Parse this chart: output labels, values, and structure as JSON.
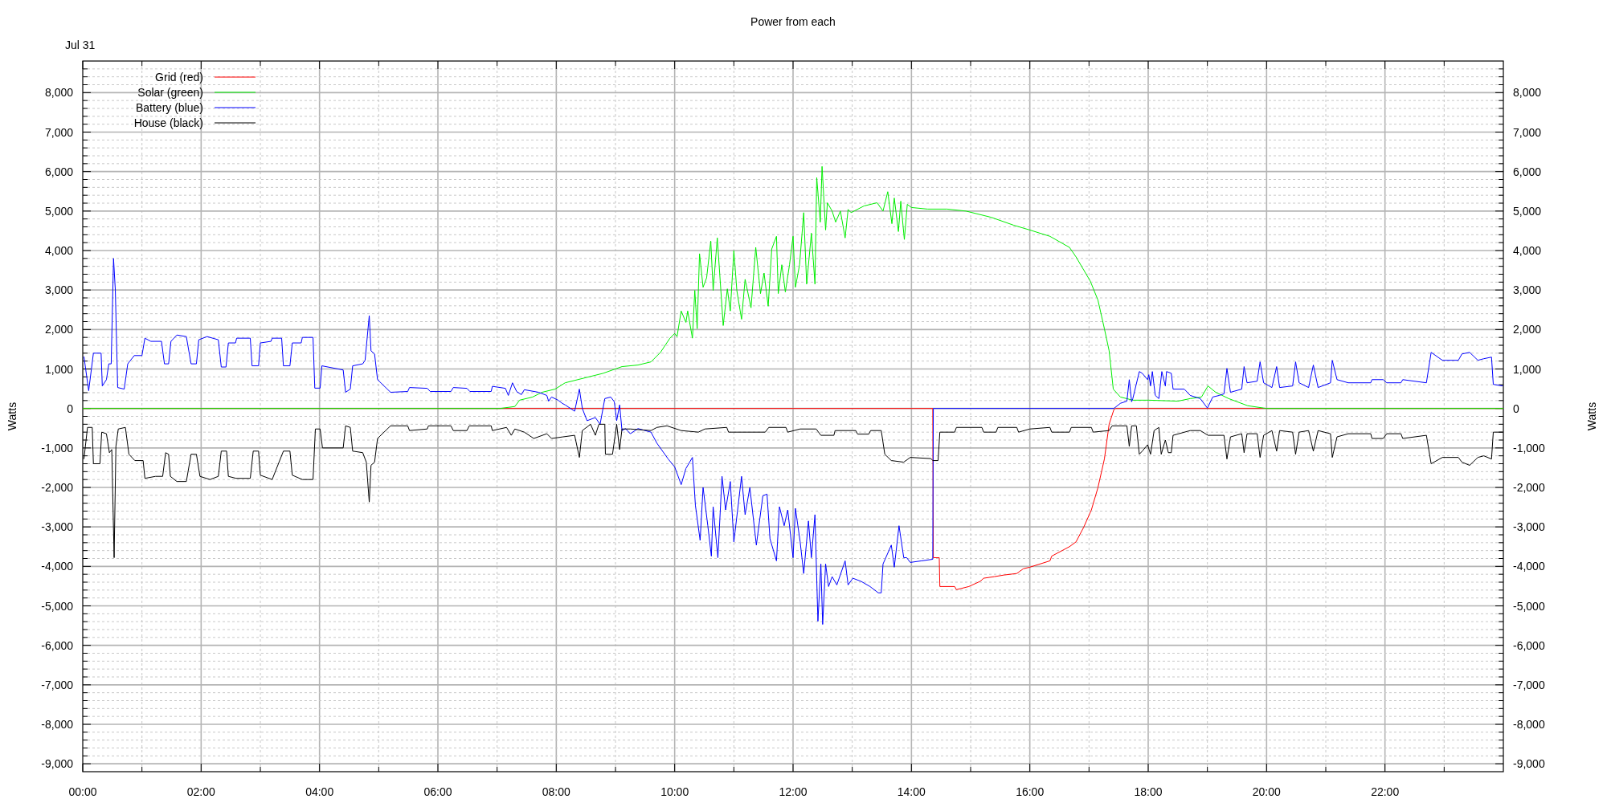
{
  "chart_data": {
    "type": "line",
    "title": "Power from each",
    "annotations": [
      "Jul 31"
    ],
    "ylabel": "Watts",
    "y2label": "Watts",
    "xlim": [
      0,
      24
    ],
    "xticks": [
      {
        "value": 0,
        "label": "00:00"
      },
      {
        "value": 1,
        "label": null
      },
      {
        "value": 2,
        "label": "02:00"
      },
      {
        "value": 3,
        "label": null
      },
      {
        "value": 4,
        "label": "04:00"
      },
      {
        "value": 5,
        "label": null
      },
      {
        "value": 6,
        "label": "06:00"
      },
      {
        "value": 7,
        "label": null
      },
      {
        "value": 8,
        "label": "08:00"
      },
      {
        "value": 9,
        "label": null
      },
      {
        "value": 10,
        "label": "10:00"
      },
      {
        "value": 11,
        "label": null
      },
      {
        "value": 12,
        "label": "12:00"
      },
      {
        "value": 13,
        "label": null
      },
      {
        "value": 14,
        "label": "14:00"
      },
      {
        "value": 15,
        "label": null
      },
      {
        "value": 16,
        "label": "16:00"
      },
      {
        "value": 17,
        "label": null
      },
      {
        "value": 18,
        "label": "18:00"
      },
      {
        "value": 19,
        "label": null
      },
      {
        "value": 20,
        "label": "20:00"
      },
      {
        "value": 21,
        "label": null
      },
      {
        "value": 22,
        "label": "22:00"
      },
      {
        "value": 23,
        "label": null
      }
    ],
    "ylim": [
      -9200,
      8800
    ],
    "yticks": [
      {
        "value": -9000,
        "label": "-9,000"
      },
      {
        "value": -8800,
        "label": null
      },
      {
        "value": -8600,
        "label": null
      },
      {
        "value": -8400,
        "label": null
      },
      {
        "value": -8200,
        "label": null
      },
      {
        "value": -8000,
        "label": "-8,000"
      },
      {
        "value": -7800,
        "label": null
      },
      {
        "value": -7600,
        "label": null
      },
      {
        "value": -7400,
        "label": null
      },
      {
        "value": -7200,
        "label": null
      },
      {
        "value": -7000,
        "label": "-7,000"
      },
      {
        "value": -6800,
        "label": null
      },
      {
        "value": -6600,
        "label": null
      },
      {
        "value": -6400,
        "label": null
      },
      {
        "value": -6200,
        "label": null
      },
      {
        "value": -6000,
        "label": "-6,000"
      },
      {
        "value": -5800,
        "label": null
      },
      {
        "value": -5600,
        "label": null
      },
      {
        "value": -5400,
        "label": null
      },
      {
        "value": -5200,
        "label": null
      },
      {
        "value": -5000,
        "label": "-5,000"
      },
      {
        "value": -4800,
        "label": null
      },
      {
        "value": -4600,
        "label": null
      },
      {
        "value": -4400,
        "label": null
      },
      {
        "value": -4200,
        "label": null
      },
      {
        "value": -4000,
        "label": "-4,000"
      },
      {
        "value": -3800,
        "label": null
      },
      {
        "value": -3600,
        "label": null
      },
      {
        "value": -3400,
        "label": null
      },
      {
        "value": -3200,
        "label": null
      },
      {
        "value": -3000,
        "label": "-3,000"
      },
      {
        "value": -2800,
        "label": null
      },
      {
        "value": -2600,
        "label": null
      },
      {
        "value": -2400,
        "label": null
      },
      {
        "value": -2200,
        "label": null
      },
      {
        "value": -2000,
        "label": "-2,000"
      },
      {
        "value": -1800,
        "label": null
      },
      {
        "value": -1600,
        "label": null
      },
      {
        "value": -1400,
        "label": null
      },
      {
        "value": -1200,
        "label": null
      },
      {
        "value": -1000,
        "label": "-1,000"
      },
      {
        "value": -800,
        "label": null
      },
      {
        "value": -600,
        "label": null
      },
      {
        "value": -400,
        "label": null
      },
      {
        "value": -200,
        "label": null
      },
      0,
      {
        "value": 200,
        "label": null
      },
      {
        "value": 400,
        "label": null
      },
      {
        "value": 600,
        "label": null
      },
      {
        "value": 800,
        "label": null
      },
      {
        "value": 1000,
        "label": "1,000"
      },
      {
        "value": 1200,
        "label": null
      },
      {
        "value": 1400,
        "label": null
      },
      {
        "value": 1600,
        "label": null
      },
      {
        "value": 1800,
        "label": null
      },
      {
        "value": 2000,
        "label": "2,000"
      },
      {
        "value": 2200,
        "label": null
      },
      {
        "value": 2400,
        "label": null
      },
      {
        "value": 2600,
        "label": null
      },
      {
        "value": 2800,
        "label": null
      },
      {
        "value": 3000,
        "label": "3,000"
      },
      {
        "value": 3200,
        "label": null
      },
      {
        "value": 3400,
        "label": null
      },
      {
        "value": 3600,
        "label": null
      },
      {
        "value": 3800,
        "label": null
      },
      {
        "value": 4000,
        "label": "4,000"
      },
      {
        "value": 4200,
        "label": null
      },
      {
        "value": 4400,
        "label": null
      },
      {
        "value": 4600,
        "label": null
      },
      {
        "value": 4800,
        "label": null
      },
      {
        "value": 5000,
        "label": "5,000"
      },
      {
        "value": 5200,
        "label": null
      },
      {
        "value": 5400,
        "label": null
      },
      {
        "value": 5600,
        "label": null
      },
      {
        "value": 5800,
        "label": null
      },
      {
        "value": 6000,
        "label": "6,000"
      },
      {
        "value": 6200,
        "label": null
      },
      {
        "value": 6400,
        "label": null
      },
      {
        "value": 6600,
        "label": null
      },
      {
        "value": 6800,
        "label": null
      },
      {
        "value": 7000,
        "label": "7,000"
      },
      {
        "value": 7200,
        "label": null
      },
      {
        "value": 7400,
        "label": null
      },
      {
        "value": 7600,
        "label": null
      },
      {
        "value": 7800,
        "label": null
      },
      {
        "value": 8000,
        "label": "8,000"
      },
      {
        "value": 8200,
        "label": null
      },
      {
        "value": 8400,
        "label": null
      },
      {
        "value": 8600,
        "label": null
      }
    ],
    "y2lim": [
      -9200,
      8800
    ],
    "y2ticks": [
      {
        "value": -9000,
        "label": "-9,000"
      },
      {
        "value": -8800,
        "label": null
      },
      {
        "value": -8600,
        "label": null
      },
      {
        "value": -8400,
        "label": null
      },
      {
        "value": -8200,
        "label": null
      },
      {
        "value": -8000,
        "label": "-8,000"
      },
      {
        "value": -7800,
        "label": null
      },
      {
        "value": -7600,
        "label": null
      },
      {
        "value": -7400,
        "label": null
      },
      {
        "value": -7200,
        "label": null
      },
      {
        "value": -7000,
        "label": "-7,000"
      },
      {
        "value": -6800,
        "label": null
      },
      {
        "value": -6600,
        "label": null
      },
      {
        "value": -6400,
        "label": null
      },
      {
        "value": -6200,
        "label": null
      },
      {
        "value": -6000,
        "label": "-6,000"
      },
      {
        "value": -5800,
        "label": null
      },
      {
        "value": -5600,
        "label": null
      },
      {
        "value": -5400,
        "label": null
      },
      {
        "value": -5200,
        "label": null
      },
      {
        "value": -5000,
        "label": "-5,000"
      },
      {
        "value": -4800,
        "label": null
      },
      {
        "value": -4600,
        "label": null
      },
      {
        "value": -4400,
        "label": null
      },
      {
        "value": -4200,
        "label": null
      },
      {
        "value": -4000,
        "label": "-4,000"
      },
      {
        "value": -3800,
        "label": null
      },
      {
        "value": -3600,
        "label": null
      },
      {
        "value": -3400,
        "label": null
      },
      {
        "value": -3200,
        "label": null
      },
      {
        "value": -3000,
        "label": "-3,000"
      },
      {
        "value": -2800,
        "label": null
      },
      {
        "value": -2600,
        "label": null
      },
      {
        "value": -2400,
        "label": null
      },
      {
        "value": -2200,
        "label": null
      },
      {
        "value": -2000,
        "label": "-2,000"
      },
      {
        "value": -1800,
        "label": null
      },
      {
        "value": -1600,
        "label": null
      },
      {
        "value": -1400,
        "label": null
      },
      {
        "value": -1200,
        "label": null
      },
      {
        "value": -1000,
        "label": "-1,000"
      },
      {
        "value": -800,
        "label": null
      },
      {
        "value": -600,
        "label": null
      },
      {
        "value": -400,
        "label": null
      },
      {
        "value": -200,
        "label": null
      },
      0,
      {
        "value": 200,
        "label": null
      },
      {
        "value": 400,
        "label": null
      },
      {
        "value": 600,
        "label": null
      },
      {
        "value": 800,
        "label": null
      },
      {
        "value": 1000,
        "label": "1,000"
      },
      {
        "value": 1200,
        "label": null
      },
      {
        "value": 1400,
        "label": null
      },
      {
        "value": 1600,
        "label": null
      },
      {
        "value": 1800,
        "label": null
      },
      {
        "value": 2000,
        "label": "2,000"
      },
      {
        "value": 2200,
        "label": null
      },
      {
        "value": 2400,
        "label": null
      },
      {
        "value": 2600,
        "label": null
      },
      {
        "value": 2800,
        "label": null
      },
      {
        "value": 3000,
        "label": "3,000"
      },
      {
        "value": 3200,
        "label": null
      },
      {
        "value": 3400,
        "label": null
      },
      {
        "value": 3600,
        "label": null
      },
      {
        "value": 3800,
        "label": null
      },
      {
        "value": 4000,
        "label": "4,000"
      },
      {
        "value": 4200,
        "label": null
      },
      {
        "value": 4400,
        "label": null
      },
      {
        "value": 4600,
        "label": null
      },
      {
        "value": 4800,
        "label": null
      },
      {
        "value": 5000,
        "label": "5,000"
      },
      {
        "value": 5200,
        "label": null
      },
      {
        "value": 5400,
        "label": null
      },
      {
        "value": 5600,
        "label": null
      },
      {
        "value": 5800,
        "label": null
      },
      {
        "value": 6000,
        "label": "6,000"
      },
      {
        "value": 6200,
        "label": null
      },
      {
        "value": 6400,
        "label": null
      },
      {
        "value": 6600,
        "label": null
      },
      {
        "value": 6800,
        "label": null
      },
      {
        "value": 7000,
        "label": "7,000"
      },
      {
        "value": 7200,
        "label": null
      },
      {
        "value": 7400,
        "label": null
      },
      {
        "value": 7600,
        "label": null
      },
      {
        "value": 7800,
        "label": null
      },
      {
        "value": 8000,
        "label": "8,000"
      },
      {
        "value": 8200,
        "label": null
      },
      {
        "value": 8400,
        "label": null
      },
      {
        "value": 8600,
        "label": null
      }
    ],
    "grid": true,
    "legend": "top left",
    "marker": "none",
    "line_style": "solid",
    "series": [
      {
        "name": "Grid (red)",
        "color": "#ff0000",
        "x": [
          0,
          14.36,
          14.37,
          14.47,
          14.48,
          14.73,
          14.76,
          14.97,
          15.16,
          15.22,
          15.4,
          15.56,
          15.78,
          15.89,
          16.0,
          16.34,
          16.37,
          16.67,
          16.78,
          16.91,
          17.04,
          17.15,
          17.26,
          17.34,
          17.42,
          17.45,
          24
        ],
        "values": [
          0,
          0,
          -3780,
          -3780,
          -4510,
          -4510,
          -4590,
          -4510,
          -4380,
          -4300,
          -4260,
          -4220,
          -4180,
          -4060,
          -4020,
          -3860,
          -3740,
          -3500,
          -3380,
          -3010,
          -2570,
          -2010,
          -1280,
          -400,
          -30,
          0,
          0
        ]
      },
      {
        "name": "Solar (green)",
        "color": "#00ee00",
        "x": [
          0,
          7.05,
          7.3,
          7.38,
          7.6,
          7.76,
          7.98,
          8.15,
          8.47,
          8.79,
          9.11,
          9.38,
          9.6,
          9.76,
          9.92,
          10.0,
          10.04,
          10.11,
          10.19,
          10.22,
          10.3,
          10.34,
          10.38,
          10.42,
          10.48,
          10.54,
          10.61,
          10.65,
          10.72,
          10.78,
          10.82,
          10.89,
          10.94,
          11.0,
          11.05,
          11.13,
          11.19,
          11.29,
          11.37,
          11.45,
          11.51,
          11.58,
          11.64,
          11.72,
          11.75,
          11.81,
          11.87,
          11.94,
          12.0,
          12.04,
          12.11,
          12.18,
          12.23,
          12.31,
          12.37,
          12.4,
          12.46,
          12.49,
          12.55,
          12.58,
          12.66,
          12.72,
          12.8,
          12.88,
          12.93,
          12.98,
          13.2,
          13.42,
          13.52,
          13.6,
          13.67,
          13.71,
          13.78,
          13.82,
          13.88,
          13.93,
          14.0,
          14.27,
          14.6,
          14.92,
          15.35,
          15.73,
          16.0,
          16.34,
          16.67,
          16.78,
          17.02,
          17.15,
          17.26,
          17.34,
          17.41,
          17.53,
          17.74,
          18.01,
          18.5,
          18.71,
          18.9,
          19.01,
          19.14,
          19.36,
          19.68,
          19.95,
          20.0,
          24
        ],
        "values": [
          0,
          0,
          50,
          210,
          290,
          410,
          490,
          650,
          770,
          890,
          1060,
          1100,
          1180,
          1420,
          1780,
          1900,
          1820,
          2470,
          2180,
          2470,
          1780,
          2990,
          2020,
          3920,
          3070,
          3310,
          4240,
          2990,
          4320,
          2990,
          2100,
          3030,
          2470,
          4000,
          2990,
          2260,
          3270,
          2550,
          4080,
          2910,
          3430,
          2590,
          4040,
          4360,
          2910,
          3640,
          2950,
          3640,
          4360,
          3070,
          3640,
          4960,
          3150,
          4440,
          3150,
          5850,
          4720,
          6130,
          4520,
          5210,
          5000,
          4720,
          5000,
          4320,
          5040,
          4960,
          5130,
          5210,
          5000,
          5490,
          4680,
          5330,
          4480,
          5250,
          4280,
          5170,
          5090,
          5050,
          5050,
          5000,
          4840,
          4640,
          4520,
          4360,
          4080,
          3840,
          3230,
          2750,
          2020,
          1460,
          490,
          290,
          210,
          210,
          185,
          250,
          290,
          570,
          410,
          250,
          70,
          10,
          0,
          0
        ]
      },
      {
        "name": "Battery (blue)",
        "color": "#0000ff",
        "x": [
          0.02,
          0.1,
          0.18,
          0.31,
          0.33,
          0.4,
          0.44,
          0.48,
          0.52,
          0.55,
          0.59,
          0.7,
          0.76,
          0.87,
          1.0,
          1.05,
          1.15,
          1.33,
          1.38,
          1.45,
          1.49,
          1.59,
          1.75,
          1.83,
          1.92,
          1.96,
          2.1,
          2.29,
          2.34,
          2.42,
          2.46,
          2.58,
          2.6,
          2.83,
          2.86,
          2.97,
          3.0,
          3.18,
          3.2,
          3.36,
          3.39,
          3.5,
          3.54,
          3.69,
          3.71,
          3.89,
          3.92,
          4.01,
          4.04,
          4.4,
          4.44,
          4.52,
          4.56,
          4.73,
          4.77,
          4.84,
          4.87,
          4.93,
          4.98,
          5.2,
          5.49,
          5.52,
          5.82,
          5.87,
          6.22,
          6.26,
          6.49,
          6.54,
          6.9,
          6.92,
          7.14,
          7.19,
          7.26,
          7.33,
          7.41,
          7.46,
          7.7,
          7.84,
          7.87,
          7.92,
          8.03,
          8.1,
          8.15,
          8.31,
          8.39,
          8.44,
          8.52,
          8.66,
          8.74,
          8.82,
          8.92,
          8.98,
          9.02,
          9.07,
          9.11,
          9.17,
          9.25,
          9.38,
          9.6,
          9.7,
          9.89,
          10.0,
          10.11,
          10.19,
          10.3,
          10.35,
          10.43,
          10.48,
          10.56,
          10.62,
          10.65,
          10.73,
          10.8,
          10.86,
          10.94,
          11.0,
          11.13,
          11.19,
          11.27,
          11.38,
          11.49,
          11.56,
          11.61,
          11.72,
          11.77,
          11.85,
          11.91,
          12.0,
          12.04,
          12.12,
          12.18,
          12.26,
          12.31,
          12.37,
          12.42,
          12.47,
          12.5,
          12.55,
          12.6,
          12.66,
          12.74,
          12.88,
          12.93,
          13.01,
          13.15,
          13.3,
          13.44,
          13.49,
          13.52,
          13.66,
          13.71,
          13.79,
          13.87,
          13.92,
          13.98,
          14.17,
          14.36,
          14.37,
          17.42,
          17.53,
          17.64,
          17.68,
          17.72,
          17.74,
          17.85,
          17.9,
          17.99,
          18.01,
          18.04,
          18.07,
          18.1,
          18.12,
          18.18,
          18.23,
          18.29,
          18.31,
          18.39,
          18.42,
          18.61,
          18.71,
          18.88,
          19.0,
          19.09,
          19.2,
          19.28,
          19.33,
          19.39,
          19.58,
          19.62,
          19.67,
          19.84,
          19.89,
          19.95,
          20.09,
          20.17,
          20.22,
          20.44,
          20.49,
          20.55,
          20.71,
          20.79,
          20.87,
          21.08,
          21.11,
          21.19,
          21.38,
          21.76,
          21.78,
          21.97,
          22.03,
          22.27,
          22.3,
          22.7,
          22.78,
          22.97,
          23.24,
          23.3,
          23.43,
          23.57,
          23.67,
          23.8,
          23.83,
          23.99
        ],
        "values": [
          1314,
          450,
          1400,
          1400,
          570,
          730,
          1130,
          1130,
          3800,
          3000,
          530,
          490,
          1130,
          1340,
          1340,
          1780,
          1700,
          1700,
          1130,
          1130,
          1700,
          1860,
          1820,
          1130,
          1130,
          1740,
          1820,
          1740,
          1050,
          1050,
          1660,
          1660,
          1780,
          1780,
          1080,
          1080,
          1660,
          1700,
          1780,
          1780,
          1080,
          1080,
          1660,
          1660,
          1800,
          1800,
          515,
          515,
          1080,
          975,
          410,
          490,
          1080,
          1130,
          1220,
          2350,
          1460,
          1380,
          730,
          410,
          430,
          530,
          510,
          430,
          430,
          530,
          510,
          430,
          430,
          560,
          510,
          330,
          650,
          430,
          350,
          475,
          410,
          330,
          185,
          290,
          210,
          130,
          90,
          -70,
          490,
          0,
          -310,
          -230,
          -400,
          250,
          290,
          170,
          -310,
          90,
          -560,
          -510,
          -640,
          -510,
          -600,
          -880,
          -1280,
          -1480,
          -1930,
          -1520,
          -1240,
          -2450,
          -3340,
          -2000,
          -2970,
          -3740,
          -2490,
          -3780,
          -1720,
          -2570,
          -1850,
          -3380,
          -1720,
          -2690,
          -2000,
          -3460,
          -2210,
          -2170,
          -3300,
          -3860,
          -2490,
          -2970,
          -2570,
          -3780,
          -2530,
          -3380,
          -4180,
          -2850,
          -3780,
          -2690,
          -5390,
          -3940,
          -5470,
          -3940,
          -4510,
          -4260,
          -4470,
          -3860,
          -4470,
          -4300,
          -4380,
          -4510,
          -4670,
          -4670,
          -3940,
          -3460,
          -4020,
          -2970,
          -3780,
          -3780,
          -3900,
          -3860,
          -3820,
          0,
          0,
          130,
          185,
          730,
          170,
          250,
          935,
          890,
          730,
          855,
          570,
          935,
          570,
          330,
          250,
          935,
          570,
          935,
          890,
          490,
          490,
          330,
          250,
          10,
          290,
          330,
          370,
          1015,
          410,
          490,
          1060,
          650,
          690,
          1180,
          650,
          530,
          1060,
          530,
          570,
          1180,
          650,
          530,
          1100,
          530,
          650,
          1220,
          730,
          650,
          650,
          730,
          730,
          650,
          650,
          730,
          650,
          1420,
          1220,
          1220,
          1380,
          1420,
          1220,
          1260,
          1300,
          610,
          570
        ]
      },
      {
        "name": "House (black)",
        "color": "#000000",
        "x": [
          0.02,
          0.08,
          0.16,
          0.18,
          0.29,
          0.32,
          0.4,
          0.45,
          0.49,
          0.53,
          0.56,
          0.6,
          0.72,
          0.78,
          0.88,
          1.02,
          1.05,
          1.23,
          1.35,
          1.4,
          1.45,
          1.48,
          1.59,
          1.75,
          1.83,
          1.92,
          1.98,
          2.15,
          2.29,
          2.34,
          2.43,
          2.46,
          2.59,
          2.83,
          2.88,
          2.97,
          3.0,
          3.2,
          3.39,
          3.5,
          3.54,
          3.71,
          3.89,
          3.93,
          4.01,
          4.05,
          4.4,
          4.44,
          4.52,
          4.56,
          4.73,
          4.79,
          4.84,
          4.87,
          4.93,
          4.98,
          5.2,
          5.49,
          5.52,
          5.82,
          5.84,
          6.22,
          6.26,
          6.49,
          6.53,
          6.9,
          6.92,
          7.16,
          7.24,
          7.3,
          7.46,
          7.62,
          7.84,
          7.92,
          8.11,
          8.31,
          8.39,
          8.44,
          8.58,
          8.66,
          8.72,
          8.82,
          8.83,
          8.95,
          9.02,
          9.07,
          9.11,
          9.25,
          9.6,
          9.7,
          9.87,
          10.11,
          10.4,
          10.51,
          10.88,
          10.91,
          11.53,
          11.59,
          11.88,
          11.91,
          12.12,
          12.39,
          12.47,
          12.69,
          12.71,
          13.06,
          13.09,
          13.28,
          13.31,
          13.49,
          13.55,
          13.66,
          13.87,
          13.98,
          14.33,
          14.36,
          14.45,
          14.48,
          14.73,
          14.76,
          15.19,
          15.22,
          15.43,
          15.46,
          15.78,
          15.81,
          16.0,
          16.34,
          16.37,
          16.67,
          16.7,
          17.04,
          17.07,
          17.34,
          17.39,
          17.64,
          17.68,
          17.72,
          17.8,
          17.85,
          17.9,
          17.99,
          18.04,
          18.1,
          18.18,
          18.22,
          18.29,
          18.34,
          18.39,
          18.42,
          18.71,
          18.88,
          19.01,
          19.28,
          19.33,
          19.39,
          19.58,
          19.62,
          19.67,
          19.84,
          19.89,
          19.95,
          20.09,
          20.17,
          20.22,
          20.44,
          20.49,
          20.55,
          20.71,
          20.79,
          20.87,
          21.08,
          21.11,
          21.19,
          21.38,
          21.76,
          21.78,
          21.97,
          22.03,
          22.27,
          22.3,
          22.7,
          22.78,
          22.97,
          23.24,
          23.3,
          23.43,
          23.57,
          23.67,
          23.8,
          23.83,
          23.99
        ],
        "values": [
          -1280,
          -480,
          -480,
          -1400,
          -1400,
          -600,
          -640,
          -1120,
          -1040,
          -3780,
          -960,
          -520,
          -480,
          -1160,
          -1320,
          -1320,
          -1770,
          -1720,
          -1720,
          -1120,
          -1160,
          -1720,
          -1850,
          -1850,
          -1160,
          -1160,
          -1720,
          -1800,
          -1720,
          -1080,
          -1080,
          -1720,
          -1770,
          -1770,
          -1080,
          -1080,
          -1690,
          -1800,
          -1080,
          -1080,
          -1690,
          -1800,
          -1800,
          -520,
          -520,
          -1000,
          -1000,
          -440,
          -480,
          -1080,
          -1120,
          -1360,
          -2370,
          -1440,
          -1360,
          -760,
          -440,
          -440,
          -560,
          -520,
          -440,
          -440,
          -560,
          -560,
          -440,
          -440,
          -560,
          -480,
          -680,
          -520,
          -600,
          -760,
          -640,
          -760,
          -720,
          -680,
          -1240,
          -560,
          -400,
          -680,
          -400,
          -400,
          -1160,
          -1160,
          -400,
          -1040,
          -520,
          -520,
          -560,
          -480,
          -440,
          -560,
          -600,
          -520,
          -480,
          -600,
          -600,
          -480,
          -480,
          -600,
          -520,
          -520,
          -680,
          -680,
          -560,
          -560,
          -650,
          -650,
          -560,
          -560,
          -1160,
          -1320,
          -1360,
          -1240,
          -1270,
          -1320,
          -1320,
          -600,
          -600,
          -480,
          -480,
          -600,
          -600,
          -480,
          -480,
          -600,
          -520,
          -480,
          -600,
          -600,
          -480,
          -480,
          -600,
          -560,
          -440,
          -440,
          -960,
          -440,
          -440,
          -1160,
          -1080,
          -920,
          -1160,
          -560,
          -480,
          -1160,
          -800,
          -1120,
          -1120,
          -680,
          -560,
          -560,
          -680,
          -680,
          -1280,
          -720,
          -640,
          -1120,
          -640,
          -640,
          -1240,
          -680,
          -560,
          -1080,
          -560,
          -600,
          -1160,
          -600,
          -560,
          -1080,
          -560,
          -640,
          -1240,
          -720,
          -640,
          -640,
          -760,
          -760,
          -640,
          -640,
          -760,
          -680,
          -1400,
          -1240,
          -1240,
          -1360,
          -1440,
          -1240,
          -1200,
          -1280,
          -600,
          -600
        ]
      }
    ]
  }
}
